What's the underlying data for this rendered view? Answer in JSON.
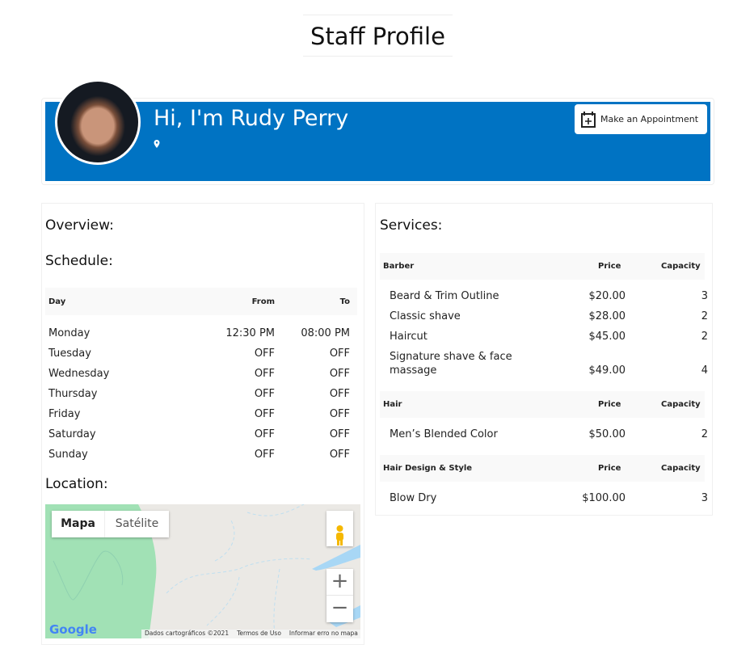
{
  "page_title": "Staff Profile",
  "header": {
    "greeting": "Hi, I'm Rudy Perry",
    "appointment_label": "Make an Appointment",
    "brand_color": "#0073c3"
  },
  "overview": {
    "heading": "Overview:"
  },
  "schedule": {
    "heading": "Schedule:",
    "columns": [
      "Day",
      "From",
      "To"
    ],
    "rows": [
      [
        "Monday",
        "12:30 PM",
        "08:00 PM"
      ],
      [
        "Tuesday",
        "OFF",
        "OFF"
      ],
      [
        "Wednesday",
        "OFF",
        "OFF"
      ],
      [
        "Thursday",
        "OFF",
        "OFF"
      ],
      [
        "Friday",
        "OFF",
        "OFF"
      ],
      [
        "Saturday",
        "OFF",
        "OFF"
      ],
      [
        "Sunday",
        "OFF",
        "OFF"
      ]
    ]
  },
  "location": {
    "heading": "Location:",
    "map_tab": "Mapa",
    "satellite_tab": "Satélite",
    "google": "Google",
    "map_data": "Dados cartográficos ©2021",
    "terms": "Termos de Uso",
    "report": "Informar erro no mapa"
  },
  "services": {
    "heading": "Services:",
    "groups": [
      {
        "name": "Barber",
        "price_label": "Price",
        "capacity_label": "Capacity",
        "items": [
          [
            "Beard & Trim Outline",
            "$20.00",
            "3"
          ],
          [
            "Classic shave",
            "$28.00",
            "2"
          ],
          [
            "Haircut",
            "$45.00",
            "2"
          ],
          [
            "Signature shave & face massage",
            "$49.00",
            "4"
          ]
        ]
      },
      {
        "name": "Hair",
        "price_label": "Price",
        "capacity_label": "Capacity",
        "items": [
          [
            "Men’s Blended Color",
            "$50.00",
            "2"
          ]
        ]
      },
      {
        "name": "Hair Design & Style",
        "price_label": "Price",
        "capacity_label": "Capacity",
        "items": [
          [
            "Blow Dry",
            "$100.00",
            "3"
          ]
        ]
      }
    ]
  }
}
